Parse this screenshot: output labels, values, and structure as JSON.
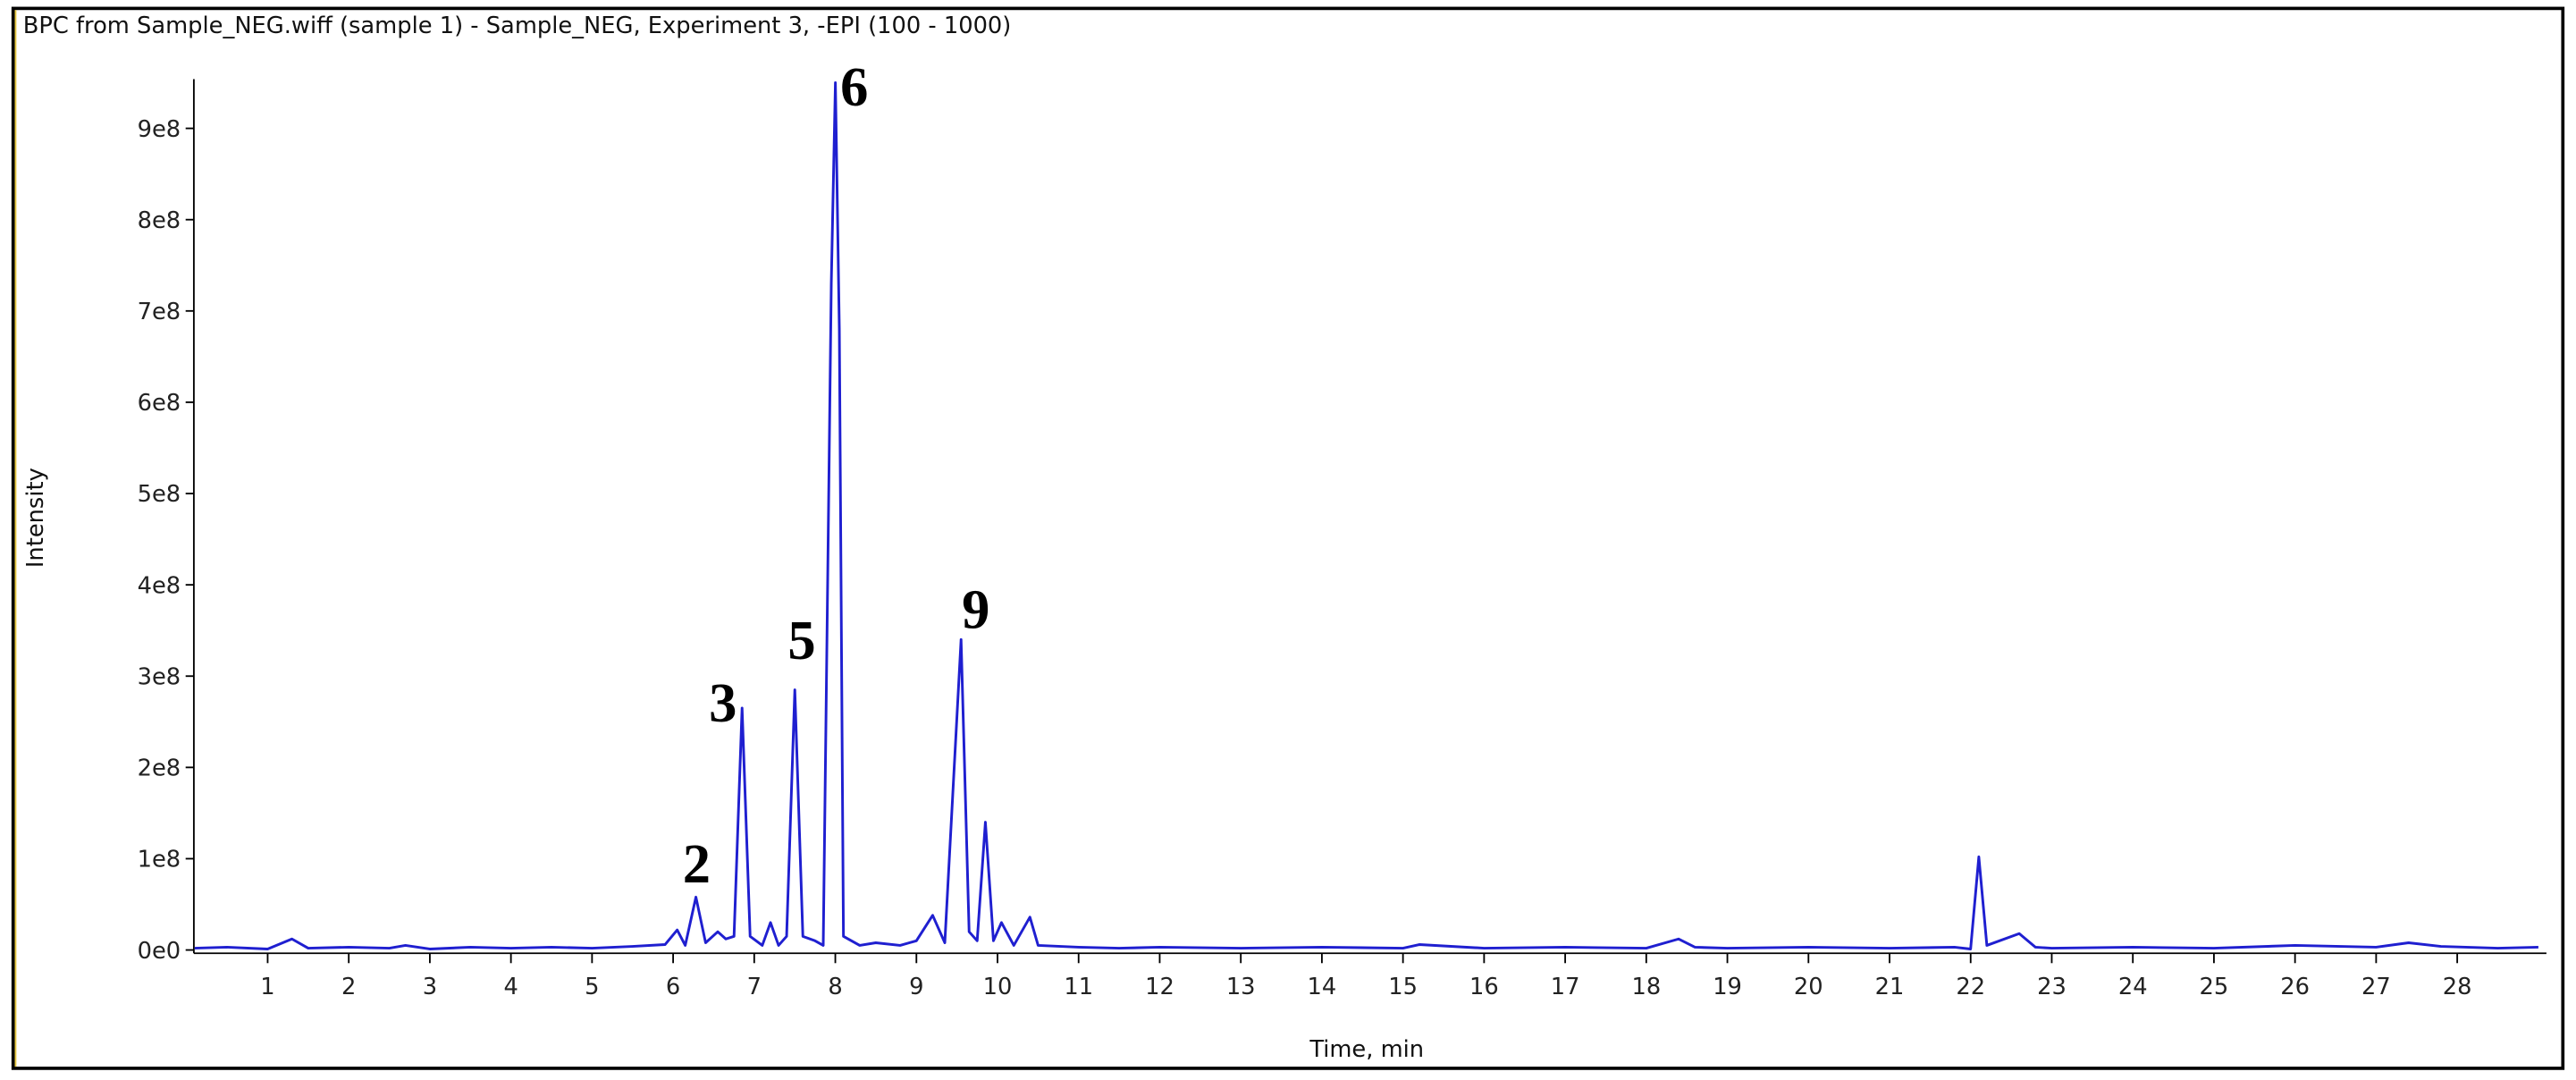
{
  "chart_data": {
    "type": "line",
    "title": "BPC from Sample_NEG.wiff (sample 1) - Sample_NEG, Experiment 3, -EPI (100 - 1000)",
    "xlabel": "Time, min",
    "ylabel": "Intensity",
    "annotations": [
      "2",
      "3",
      "5",
      "6",
      "9"
    ],
    "color": "#1f1fd0",
    "x": [
      0.1,
      0.5,
      1.0,
      1.3,
      1.5,
      2.0,
      2.5,
      2.7,
      3.0,
      3.5,
      4.0,
      4.5,
      5.0,
      5.5,
      5.9,
      6.05,
      6.15,
      6.28,
      6.4,
      6.55,
      6.65,
      6.75,
      6.85,
      6.95,
      7.1,
      7.2,
      7.3,
      7.4,
      7.5,
      7.6,
      7.75,
      7.85,
      7.95,
      8.0,
      8.05,
      8.1,
      8.3,
      8.5,
      8.8,
      9.0,
      9.2,
      9.35,
      9.55,
      9.65,
      9.75,
      9.85,
      9.95,
      10.05,
      10.2,
      10.4,
      10.5,
      11.0,
      11.5,
      12,
      13,
      14,
      15,
      15.2,
      16,
      17,
      18,
      18.4,
      18.6,
      19,
      20,
      21,
      21.8,
      22.0,
      22.1,
      22.2,
      22.6,
      22.8,
      23,
      24,
      25,
      26,
      27,
      27.4,
      27.8,
      28.5,
      29.0
    ],
    "values": [
      2000000.0,
      3000000.0,
      1000000.0,
      12000000.0,
      2000000.0,
      3000000.0,
      2000000.0,
      5000000.0,
      1000000.0,
      3000000.0,
      2000000.0,
      3000000.0,
      2000000.0,
      4000000.0,
      6000000.0,
      22000000.0,
      5000000.0,
      58000000.0,
      8000000.0,
      20000000.0,
      12000000.0,
      15000000.0,
      265000000.0,
      15000000.0,
      5000000.0,
      30000000.0,
      5000000.0,
      15000000.0,
      285000000.0,
      15000000.0,
      10000000.0,
      5000000.0,
      730000000.0,
      950000000.0,
      680000000.0,
      15000000.0,
      5000000.0,
      8000000.0,
      5000000.0,
      10000000.0,
      38000000.0,
      8000000.0,
      340000000.0,
      20000000.0,
      10000000.0,
      140000000.0,
      10000000.0,
      30000000.0,
      5000000.0,
      36000000.0,
      5000000.0,
      3000000.0,
      2000000.0,
      3000000.0,
      2000000.0,
      3000000.0,
      2000000.0,
      6000000.0,
      2000000.0,
      3000000.0,
      2000000.0,
      12000000.0,
      3000000.0,
      2000000.0,
      3000000.0,
      2000000.0,
      3000000.0,
      1000000.0,
      102000000.0,
      5000000.0,
      18000000.0,
      3000000.0,
      2000000.0,
      3000000.0,
      2000000.0,
      5000000.0,
      3000000.0,
      8000000.0,
      4000000.0,
      2000000.0,
      3000000.0
    ],
    "xlim": [
      0.09,
      29.1
    ],
    "ylim": [
      0,
      954000000
    ],
    "xticks": [
      1,
      2,
      3,
      4,
      5,
      6,
      7,
      8,
      9,
      10,
      11,
      12,
      13,
      14,
      15,
      16,
      17,
      18,
      19,
      20,
      21,
      22,
      23,
      24,
      25,
      26,
      27,
      28
    ],
    "yticks": [
      {
        "value": 0,
        "label": "0e0"
      },
      {
        "value": 100000000,
        "label": "1e8"
      },
      {
        "value": 200000000,
        "label": "2e8"
      },
      {
        "value": 300000000,
        "label": "3e8"
      },
      {
        "value": 400000000,
        "label": "4e8"
      },
      {
        "value": 500000000,
        "label": "5e8"
      },
      {
        "value": 600000000,
        "label": "6e8"
      },
      {
        "value": 700000000,
        "label": "7e8"
      },
      {
        "value": 800000000,
        "label": "8e8"
      },
      {
        "value": 900000000,
        "label": "9e8"
      }
    ],
    "grid": false
  }
}
